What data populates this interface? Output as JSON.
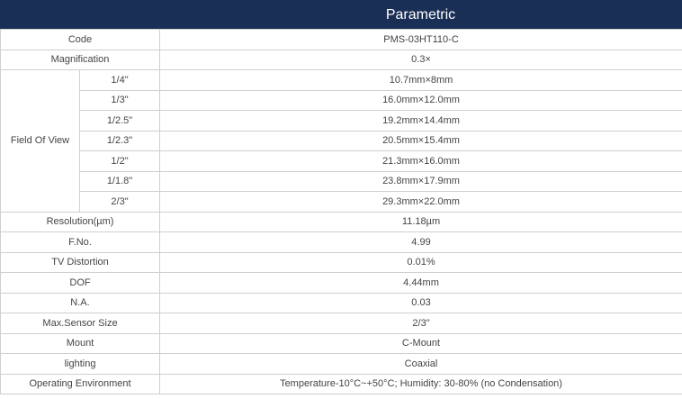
{
  "header": {
    "title": "Parametric"
  },
  "code": {
    "label": "Code",
    "value": "PMS-03HT110-C"
  },
  "magnification": {
    "label": "Magnification",
    "value": "0.3×"
  },
  "fov": {
    "label": "Field Of View",
    "rows": [
      {
        "size": "1/4\"",
        "value": "10.7mm×8mm"
      },
      {
        "size": "1/3\"",
        "value": "16.0mm×12.0mm"
      },
      {
        "size": "1/2.5\"",
        "value": "19.2mm×14.4mm"
      },
      {
        "size": "1/2.3\"",
        "value": "20.5mm×15.4mm"
      },
      {
        "size": "1/2\"",
        "value": "21.3mm×16.0mm"
      },
      {
        "size": "1/1.8\"",
        "value": "23.8mm×17.9mm"
      },
      {
        "size": "2/3\"",
        "value": "29.3mm×22.0mm"
      }
    ]
  },
  "specs": [
    {
      "label": "Resolution(µm)",
      "value": "11.18µm"
    },
    {
      "label": "F.No.",
      "value": "4.99"
    },
    {
      "label": "TV Distortion",
      "value": "0.01%"
    },
    {
      "label": "DOF",
      "value": "4.44mm"
    },
    {
      "label": "N.A.",
      "value": "0.03"
    },
    {
      "label": "Max.Sensor Size",
      "value": "2/3\""
    },
    {
      "label": "Mount",
      "value": "C-Mount"
    },
    {
      "label": "lighting",
      "value": "Coaxial"
    },
    {
      "label": "Operating Environment",
      "value": "Temperature-10°C~+50°C;  Humidity: 30-80% (no Condensation)"
    }
  ]
}
